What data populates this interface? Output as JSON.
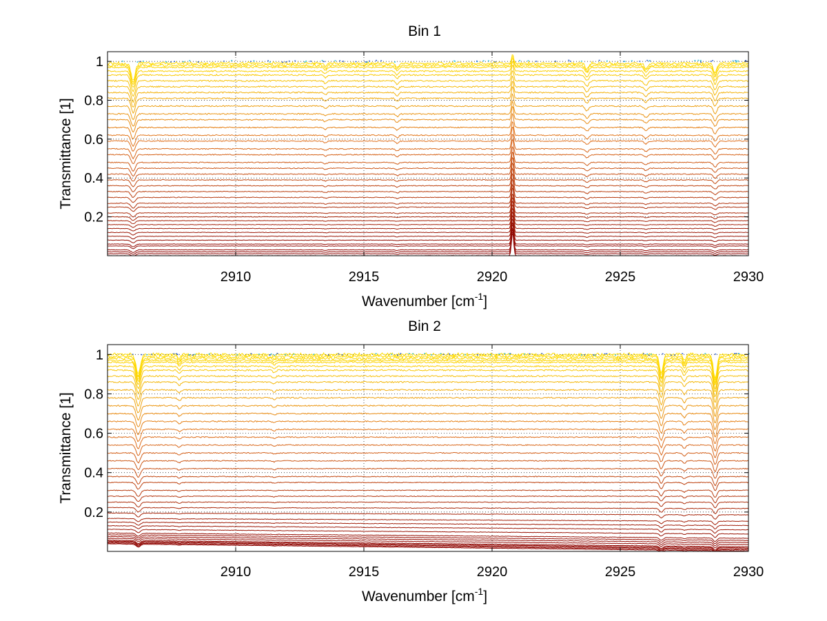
{
  "chart_data": [
    {
      "type": "line",
      "title": "Bin 1",
      "xlabel": "Wavenumber [cm",
      "xlabel_sup": "-1",
      "xlabel_tail": "]",
      "ylabel": "Transmittance [1]",
      "xlim": [
        2905,
        2930
      ],
      "ylim": [
        0,
        1.05
      ],
      "xticks": [
        2910,
        2915,
        2920,
        2925,
        2930
      ],
      "xtick_labels": [
        "2910",
        "2915",
        "2920",
        "2925",
        "2930"
      ],
      "yticks": [
        0.2,
        0.4,
        0.6,
        0.8,
        1
      ],
      "ytick_labels": [
        "0.2",
        "0.4",
        "0.6",
        "0.8",
        "1"
      ],
      "grid": true,
      "grid_style": "dotted",
      "colormap": "autumn-dark (dark red to yellow)",
      "colors": {
        "low": "#8b0000",
        "mid": "#e0701a",
        "high": "#ffdd00"
      },
      "series_count": 40,
      "baseline_levels": [
        0.0,
        0.01,
        0.02,
        0.03,
        0.05,
        0.06,
        0.08,
        0.1,
        0.12,
        0.14,
        0.16,
        0.18,
        0.2,
        0.22,
        0.25,
        0.27,
        0.3,
        0.33,
        0.36,
        0.39,
        0.42,
        0.45,
        0.48,
        0.52,
        0.55,
        0.59,
        0.62,
        0.66,
        0.7,
        0.73,
        0.77,
        0.81,
        0.84,
        0.87,
        0.9,
        0.93,
        0.95,
        0.97,
        0.98,
        0.99
      ],
      "absorption_lines": [
        {
          "x": 2906.0,
          "depth": 0.09,
          "width": 0.12
        },
        {
          "x": 2913.5,
          "depth": 0.015,
          "width": 0.08
        },
        {
          "x": 2916.3,
          "depth": 0.02,
          "width": 0.08
        },
        {
          "x": 2923.7,
          "depth": 0.03,
          "width": 0.1
        },
        {
          "x": 2926.0,
          "depth": 0.025,
          "width": 0.1
        },
        {
          "x": 2928.7,
          "depth": 0.05,
          "width": 0.1
        }
      ],
      "emission_lines": [
        {
          "x": 2920.8,
          "height": 0.12,
          "width": 0.06
        }
      ]
    },
    {
      "type": "line",
      "title": "Bin 2",
      "xlabel": "Wavenumber [cm",
      "xlabel_sup": "-1",
      "xlabel_tail": "]",
      "ylabel": "Transmittance [1]",
      "xlim": [
        2905,
        2930
      ],
      "ylim": [
        0,
        1.05
      ],
      "xticks": [
        2910,
        2915,
        2920,
        2925,
        2930
      ],
      "xtick_labels": [
        "2910",
        "2915",
        "2920",
        "2925",
        "2930"
      ],
      "yticks": [
        0.2,
        0.4,
        0.6,
        0.8,
        1
      ],
      "ytick_labels": [
        "0.2",
        "0.4",
        "0.6",
        "0.8",
        "1"
      ],
      "grid": true,
      "grid_style": "dotted",
      "colormap": "autumn-dark (dark red to yellow)",
      "colors": {
        "low": "#8b0000",
        "mid": "#e0701a",
        "high": "#ffdd00"
      },
      "series_count": 40,
      "baseline_levels": [
        0.02,
        0.025,
        0.03,
        0.035,
        0.04,
        0.05,
        0.06,
        0.07,
        0.08,
        0.1,
        0.12,
        0.14,
        0.16,
        0.19,
        0.22,
        0.25,
        0.28,
        0.31,
        0.35,
        0.38,
        0.42,
        0.46,
        0.5,
        0.54,
        0.58,
        0.62,
        0.66,
        0.7,
        0.74,
        0.78,
        0.82,
        0.86,
        0.89,
        0.92,
        0.94,
        0.96,
        0.97,
        0.98,
        0.99,
        1.0
      ],
      "baseline_tilt_low": 0.04,
      "absorption_lines": [
        {
          "x": 2906.2,
          "depth": 0.1,
          "width": 0.12
        },
        {
          "x": 2907.8,
          "depth": 0.02,
          "width": 0.08
        },
        {
          "x": 2911.5,
          "depth": 0.012,
          "width": 0.08
        },
        {
          "x": 2926.6,
          "depth": 0.09,
          "width": 0.1
        },
        {
          "x": 2927.5,
          "depth": 0.03,
          "width": 0.08
        },
        {
          "x": 2928.7,
          "depth": 0.12,
          "width": 0.1
        }
      ],
      "emission_lines": []
    }
  ]
}
